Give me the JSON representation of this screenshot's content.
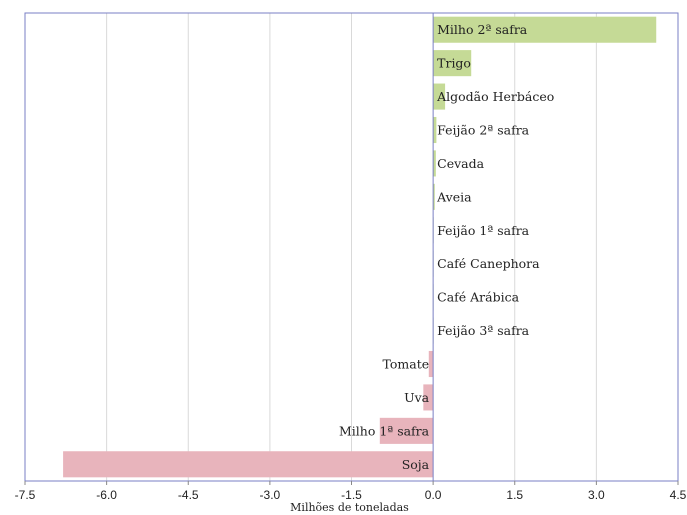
{
  "chart_data": {
    "type": "bar",
    "orientation": "horizontal",
    "xlabel": "Milhões de toneladas",
    "xlim": [
      -7.5,
      4.5
    ],
    "x_ticks": [
      "-7.5",
      "-6.0",
      "-4.5",
      "-3.0",
      "-1.5",
      "0.0",
      "1.5",
      "3.0",
      "4.5"
    ],
    "grid": "vertical",
    "colors": {
      "positive": "#c5da96",
      "negative": "#e8b4bc",
      "axis": "#7a7fc4",
      "grid": "#d9d9d9",
      "frame": "#7a7fc4"
    },
    "categories": [
      "Milho 2ª safra",
      "Trigo",
      "Algodão Herbáceo",
      "Feijão 2ª safra",
      "Cevada",
      "Aveia",
      "Feijão 1ª safra",
      "Café Canephora",
      "Café Arábica",
      "Feijão 3ª safra",
      "Tomate",
      "Uva",
      "Milho 1ª safra",
      "Soja"
    ],
    "values": [
      4.1,
      0.7,
      0.22,
      0.06,
      0.05,
      0.03,
      0.01,
      0.005,
      0.003,
      0.002,
      -0.08,
      -0.18,
      -0.98,
      -6.8
    ]
  }
}
